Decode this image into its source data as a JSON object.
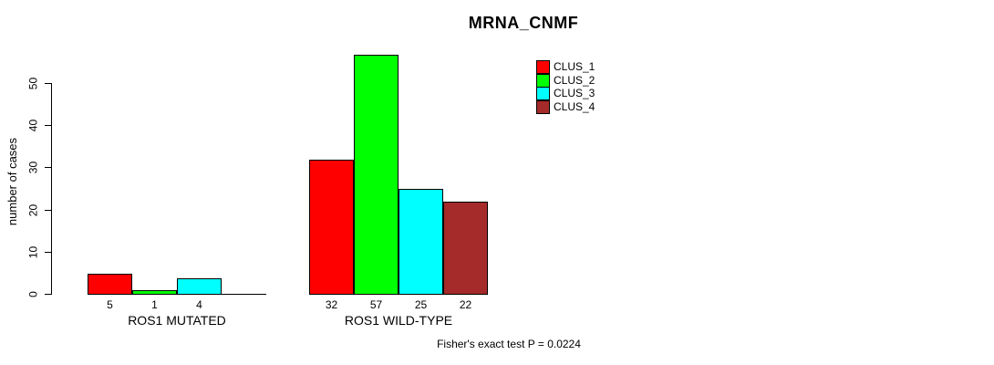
{
  "chart_data": {
    "type": "bar",
    "title": "MRNA_CNMF",
    "ylabel": "number of cases",
    "xlabel": "",
    "yticks": [
      0,
      10,
      20,
      30,
      40,
      50
    ],
    "ylim": [
      0,
      57
    ],
    "grid": false,
    "legend_position": "top-right",
    "series": [
      {
        "name": "CLUS_1",
        "color": "#FF0000"
      },
      {
        "name": "CLUS_2",
        "color": "#00FF00"
      },
      {
        "name": "CLUS_3",
        "color": "#00FFFF"
      },
      {
        "name": "CLUS_4",
        "color": "#A52A2A"
      }
    ],
    "categories": [
      "ROS1 MUTATED",
      "ROS1 WILD-TYPE"
    ],
    "groups": [
      {
        "label": "ROS1 MUTATED",
        "values": [
          5,
          1,
          4,
          0
        ],
        "bar_labels": [
          "5",
          "1",
          "4",
          ""
        ]
      },
      {
        "label": "ROS1 WILD-TYPE",
        "values": [
          32,
          57,
          25,
          22
        ],
        "bar_labels": [
          "32",
          "57",
          "25",
          "22"
        ]
      }
    ],
    "footnote": "Fisher's exact test P = 0.0224",
    "axis_color": "#000000",
    "bar_border_color": "#000000"
  }
}
